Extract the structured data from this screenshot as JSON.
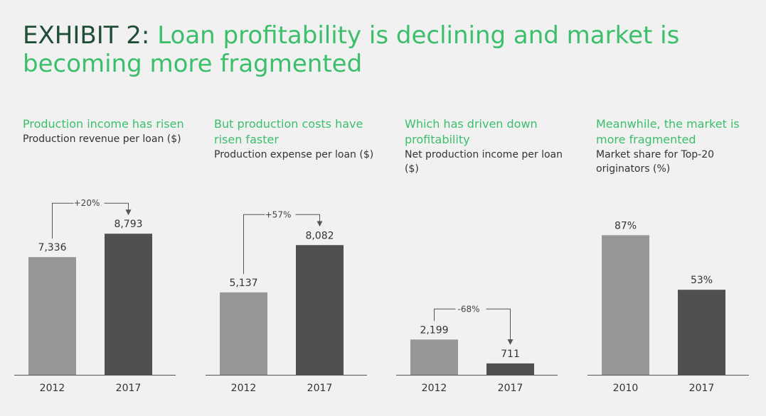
{
  "title": {
    "lead": "EXHIBIT 2:",
    "text": "Loan profitability is declining and market is becoming more fragmented"
  },
  "colors": {
    "accent": "#3bbf6b",
    "lead": "#1f4d36",
    "bar_light": "#979797",
    "bar_dark": "#505050"
  },
  "chart_data": [
    {
      "type": "bar",
      "headline": "Production income has risen",
      "subtitle": "Production revenue per loan ($)",
      "categories": [
        "2012",
        "2017"
      ],
      "values": [
        7336,
        8793
      ],
      "value_labels": [
        "7,336",
        "8,793"
      ],
      "change_label": "+20%",
      "ylim": [
        0,
        9200
      ]
    },
    {
      "type": "bar",
      "headline": "But production costs have risen faster",
      "subtitle": "Production expense per loan ($)",
      "categories": [
        "2012",
        "2017"
      ],
      "values": [
        5137,
        8082
      ],
      "value_labels": [
        "5,137",
        "8,082"
      ],
      "change_label": "+57%",
      "ylim": [
        0,
        9200
      ]
    },
    {
      "type": "bar",
      "headline": "Which has driven down profitability",
      "subtitle": "Net production income per loan ($)",
      "categories": [
        "2012",
        "2017"
      ],
      "values": [
        2199,
        711
      ],
      "value_labels": [
        "2,199",
        "711"
      ],
      "change_label": "-68%",
      "ylim": [
        0,
        9200
      ]
    },
    {
      "type": "bar",
      "headline": "Meanwhile, the market is more fragmented",
      "subtitle": "Market share for Top-20 originators (%)",
      "categories": [
        "2010",
        "2017"
      ],
      "values": [
        87,
        53
      ],
      "value_labels": [
        "87%",
        "53%"
      ],
      "change_label": "",
      "ylim": [
        0,
        92
      ]
    }
  ]
}
